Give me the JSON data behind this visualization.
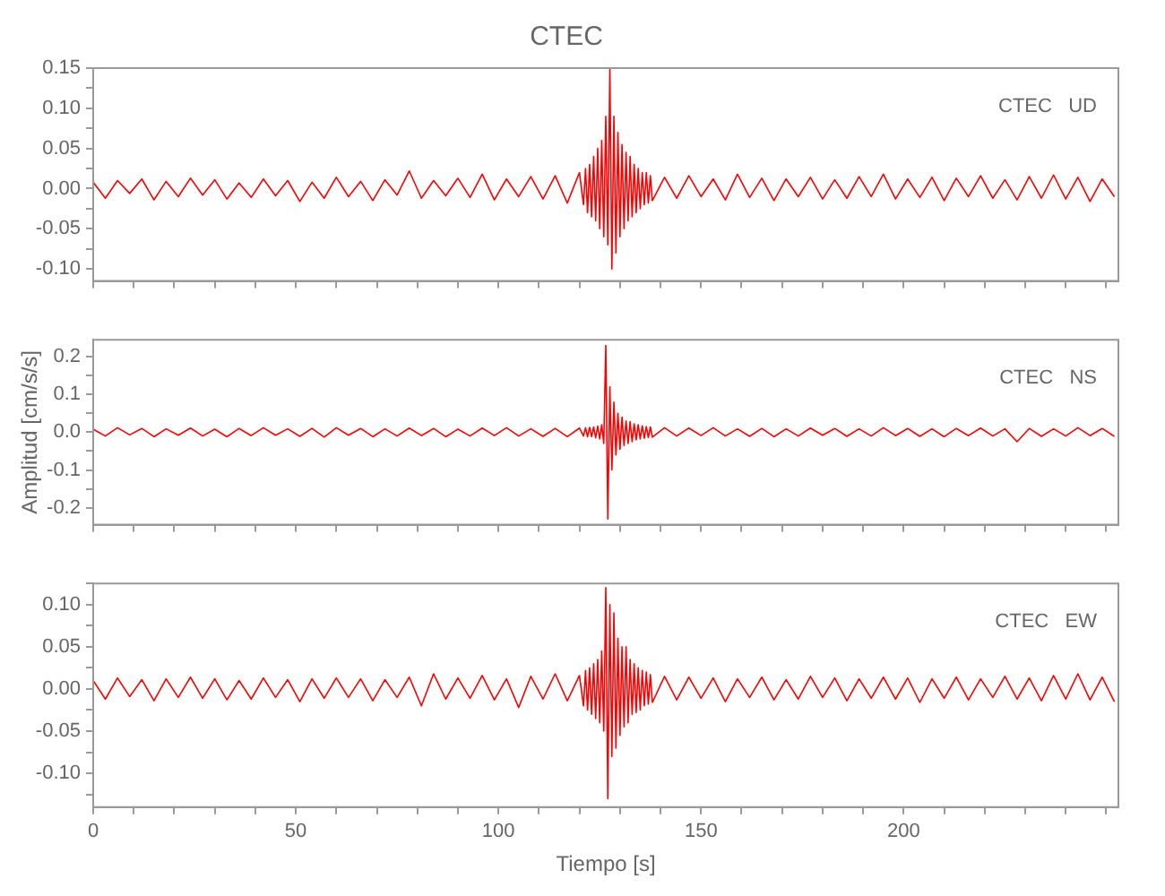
{
  "chart_data": [
    {
      "type": "line",
      "title": "CTEC",
      "annotations": [
        "CTEC   UD"
      ],
      "tick_labels": "y",
      "grid": false,
      "marker": "none",
      "x": [
        0,
        3,
        6,
        9,
        12,
        15,
        18,
        21,
        24,
        27,
        30,
        33,
        36,
        39,
        42,
        45,
        48,
        51,
        54,
        57,
        60,
        63,
        66,
        69,
        72,
        75,
        78,
        81,
        84,
        87,
        90,
        93,
        96,
        99,
        102,
        105,
        108,
        111,
        114,
        117,
        120,
        121,
        121.5,
        122,
        122.5,
        123,
        123.5,
        124,
        124.5,
        125,
        125.5,
        126,
        126.5,
        127,
        127.5,
        128,
        128.5,
        129,
        129.5,
        130,
        130.5,
        131,
        131.5,
        132,
        132.5,
        133,
        133.5,
        134,
        134.5,
        135,
        135.5,
        136,
        136.5,
        137,
        137.5,
        138,
        141,
        144,
        147,
        150,
        153,
        156,
        159,
        162,
        165,
        168,
        171,
        174,
        177,
        180,
        183,
        186,
        189,
        192,
        195,
        198,
        201,
        204,
        207,
        210,
        213,
        216,
        219,
        222,
        225,
        228,
        231,
        234,
        237,
        240,
        243,
        246,
        249,
        252
      ],
      "series": [
        {
          "color": "#ff0000",
          "values": [
            0.008,
            -0.012,
            0.01,
            -0.006,
            0.012,
            -0.014,
            0.009,
            -0.01,
            0.013,
            -0.008,
            0.011,
            -0.013,
            0.007,
            -0.011,
            0.012,
            -0.009,
            0.01,
            -0.016,
            0.008,
            -0.012,
            0.014,
            -0.01,
            0.009,
            -0.015,
            0.011,
            -0.008,
            0.022,
            -0.012,
            0.01,
            -0.009,
            0.013,
            -0.011,
            0.018,
            -0.014,
            0.012,
            -0.01,
            0.015,
            -0.013,
            0.016,
            -0.018,
            0.02,
            -0.02,
            0.025,
            -0.03,
            0.03,
            -0.035,
            0.04,
            -0.04,
            0.05,
            -0.05,
            0.06,
            -0.06,
            0.09,
            -0.07,
            0.15,
            -0.1,
            0.09,
            -0.08,
            0.07,
            -0.06,
            0.055,
            -0.05,
            0.045,
            -0.04,
            0.04,
            -0.035,
            0.03,
            -0.03,
            0.025,
            -0.025,
            0.02,
            -0.02,
            0.02,
            -0.018,
            0.016,
            -0.015,
            0.014,
            -0.012,
            0.016,
            -0.01,
            0.012,
            -0.014,
            0.018,
            -0.011,
            0.013,
            -0.015,
            0.012,
            -0.01,
            0.014,
            -0.013,
            0.011,
            -0.012,
            0.015,
            -0.01,
            0.018,
            -0.013,
            0.012,
            -0.011,
            0.014,
            -0.015,
            0.013,
            -0.01,
            0.016,
            -0.012,
            0.011,
            -0.014,
            0.015,
            -0.012,
            0.017,
            -0.013,
            0.014,
            -0.016,
            0.012,
            -0.01
          ]
        }
      ],
      "xlim": [
        0,
        253
      ],
      "xticks": [
        0,
        {
          "value": 10,
          "label": null
        },
        {
          "value": 20,
          "label": null
        },
        {
          "value": 30,
          "label": null
        },
        {
          "value": 40,
          "label": null
        },
        50,
        {
          "value": 60,
          "label": null
        },
        {
          "value": 70,
          "label": null
        },
        {
          "value": 80,
          "label": null
        },
        {
          "value": 90,
          "label": null
        },
        100,
        {
          "value": 110,
          "label": null
        },
        {
          "value": 120,
          "label": null
        },
        {
          "value": 130,
          "label": null
        },
        {
          "value": 140,
          "label": null
        },
        150,
        {
          "value": 160,
          "label": null
        },
        {
          "value": 170,
          "label": null
        },
        {
          "value": 180,
          "label": null
        },
        {
          "value": 190,
          "label": null
        },
        200,
        {
          "value": 210,
          "label": null
        },
        {
          "value": 220,
          "label": null
        },
        {
          "value": 230,
          "label": null
        },
        {
          "value": 240,
          "label": null
        },
        {
          "value": 250,
          "label": null
        }
      ],
      "ylim": [
        -0.115,
        0.15
      ],
      "yticks": [
        {
          "value": -0.1,
          "label": "-0.10"
        },
        {
          "value": -0.075,
          "label": null
        },
        {
          "value": -0.05,
          "label": "-0.05"
        },
        {
          "value": -0.025,
          "label": null
        },
        {
          "value": 0,
          "label": "0.00"
        },
        {
          "value": 0.025,
          "label": null
        },
        {
          "value": 0.05,
          "label": "0.05"
        },
        {
          "value": 0.075,
          "label": null
        },
        {
          "value": 0.1,
          "label": "0.10"
        },
        {
          "value": 0.125,
          "label": null
        },
        {
          "value": 0.15,
          "label": "0.15"
        }
      ]
    },
    {
      "type": "line",
      "ylabel": "Amplitud [cm/s/s]",
      "annotations": [
        "CTEC   NS"
      ],
      "tick_labels": "y",
      "grid": false,
      "marker": "none",
      "x": [
        0,
        3,
        6,
        9,
        12,
        15,
        18,
        21,
        24,
        27,
        30,
        33,
        36,
        39,
        42,
        45,
        48,
        51,
        54,
        57,
        60,
        63,
        66,
        69,
        72,
        75,
        78,
        81,
        84,
        87,
        90,
        93,
        96,
        99,
        102,
        105,
        108,
        111,
        114,
        117,
        120,
        121,
        121.5,
        122,
        122.5,
        123,
        123.5,
        124,
        124.5,
        125,
        125.5,
        126,
        126.5,
        127,
        127.5,
        128,
        128.5,
        129,
        129.5,
        130,
        130.5,
        131,
        131.5,
        132,
        132.5,
        133,
        133.5,
        134,
        134.5,
        135,
        135.5,
        136,
        136.5,
        137,
        137.5,
        138,
        141,
        144,
        147,
        150,
        153,
        156,
        159,
        162,
        165,
        168,
        171,
        174,
        177,
        180,
        183,
        186,
        189,
        192,
        195,
        198,
        201,
        204,
        207,
        210,
        213,
        216,
        219,
        222,
        225,
        228,
        231,
        234,
        237,
        240,
        243,
        246,
        249,
        252
      ],
      "series": [
        {
          "color": "#ff0000",
          "values": [
            0.008,
            -0.01,
            0.012,
            -0.007,
            0.01,
            -0.012,
            0.009,
            -0.008,
            0.011,
            -0.01,
            0.008,
            -0.012,
            0.01,
            -0.009,
            0.012,
            -0.008,
            0.009,
            -0.011,
            0.01,
            -0.013,
            0.012,
            -0.008,
            0.01,
            -0.012,
            0.009,
            -0.01,
            0.011,
            -0.009,
            0.01,
            -0.012,
            0.008,
            -0.01,
            0.011,
            -0.009,
            0.012,
            -0.01,
            0.009,
            -0.011,
            0.01,
            -0.012,
            0.011,
            -0.01,
            0.012,
            -0.012,
            0.013,
            -0.012,
            0.014,
            -0.015,
            0.016,
            -0.018,
            0.02,
            -0.03,
            0.23,
            -0.23,
            0.12,
            -0.1,
            0.08,
            -0.06,
            0.05,
            -0.045,
            0.04,
            -0.035,
            0.03,
            -0.03,
            0.028,
            -0.025,
            0.022,
            -0.02,
            0.02,
            -0.018,
            0.017,
            -0.016,
            0.015,
            -0.014,
            0.014,
            -0.013,
            0.012,
            -0.01,
            0.011,
            -0.009,
            0.012,
            -0.01,
            0.009,
            -0.011,
            0.01,
            -0.012,
            0.009,
            -0.01,
            0.011,
            -0.008,
            0.01,
            -0.011,
            0.009,
            -0.01,
            0.012,
            -0.009,
            0.01,
            -0.011,
            0.009,
            -0.012,
            0.01,
            -0.009,
            0.011,
            -0.01,
            0.009,
            -0.025,
            0.01,
            -0.011,
            0.009,
            -0.01,
            0.012,
            -0.009,
            0.01,
            -0.011
          ]
        }
      ],
      "xlim": [
        0,
        253
      ],
      "xticks": [
        0,
        {
          "value": 10,
          "label": null
        },
        {
          "value": 20,
          "label": null
        },
        {
          "value": 30,
          "label": null
        },
        {
          "value": 40,
          "label": null
        },
        50,
        {
          "value": 60,
          "label": null
        },
        {
          "value": 70,
          "label": null
        },
        {
          "value": 80,
          "label": null
        },
        {
          "value": 90,
          "label": null
        },
        100,
        {
          "value": 110,
          "label": null
        },
        {
          "value": 120,
          "label": null
        },
        {
          "value": 130,
          "label": null
        },
        {
          "value": 140,
          "label": null
        },
        150,
        {
          "value": 160,
          "label": null
        },
        {
          "value": 170,
          "label": null
        },
        {
          "value": 180,
          "label": null
        },
        {
          "value": 190,
          "label": null
        },
        200,
        {
          "value": 210,
          "label": null
        },
        {
          "value": 220,
          "label": null
        },
        {
          "value": 230,
          "label": null
        },
        {
          "value": 240,
          "label": null
        },
        {
          "value": 250,
          "label": null
        }
      ],
      "ylim": [
        -0.245,
        0.245
      ],
      "yticks": [
        {
          "value": -0.2,
          "label": "-0.2"
        },
        {
          "value": -0.15,
          "label": null
        },
        {
          "value": -0.1,
          "label": "-0.1"
        },
        {
          "value": -0.05,
          "label": null
        },
        {
          "value": 0,
          "label": "0.0"
        },
        {
          "value": 0.05,
          "label": null
        },
        {
          "value": 0.1,
          "label": "0.1"
        },
        {
          "value": 0.15,
          "label": null
        },
        {
          "value": 0.2,
          "label": "0.2"
        }
      ]
    },
    {
      "type": "line",
      "xlabel": "Tiempo [s]",
      "annotations": [
        "CTEC   EW"
      ],
      "grid": false,
      "marker": "none",
      "x": [
        0,
        3,
        6,
        9,
        12,
        15,
        18,
        21,
        24,
        27,
        30,
        33,
        36,
        39,
        42,
        45,
        48,
        51,
        54,
        57,
        60,
        63,
        66,
        69,
        72,
        75,
        78,
        81,
        84,
        87,
        90,
        93,
        96,
        99,
        102,
        105,
        108,
        111,
        114,
        117,
        120,
        121,
        121.5,
        122,
        122.5,
        123,
        123.5,
        124,
        124.5,
        125,
        125.5,
        126,
        126.5,
        127,
        127.5,
        128,
        128.5,
        129,
        129.5,
        130,
        130.5,
        131,
        131.5,
        132,
        132.5,
        133,
        133.5,
        134,
        134.5,
        135,
        135.5,
        136,
        136.5,
        137,
        137.5,
        138,
        141,
        144,
        147,
        150,
        153,
        156,
        159,
        162,
        165,
        168,
        171,
        174,
        177,
        180,
        183,
        186,
        189,
        192,
        195,
        198,
        201,
        204,
        207,
        210,
        213,
        216,
        219,
        222,
        225,
        228,
        231,
        234,
        237,
        240,
        243,
        246,
        249,
        252
      ],
      "series": [
        {
          "color": "#ff0000",
          "values": [
            0.01,
            -0.012,
            0.013,
            -0.009,
            0.011,
            -0.014,
            0.012,
            -0.01,
            0.014,
            -0.011,
            0.012,
            -0.013,
            0.01,
            -0.012,
            0.013,
            -0.01,
            0.011,
            -0.015,
            0.012,
            -0.011,
            0.013,
            -0.01,
            0.012,
            -0.014,
            0.011,
            -0.01,
            0.014,
            -0.02,
            0.018,
            -0.012,
            0.013,
            -0.011,
            0.016,
            -0.013,
            0.012,
            -0.022,
            0.015,
            -0.012,
            0.018,
            -0.014,
            0.016,
            -0.02,
            0.022,
            -0.025,
            0.025,
            -0.03,
            0.03,
            -0.035,
            0.035,
            -0.04,
            0.045,
            -0.05,
            0.12,
            -0.13,
            0.1,
            -0.08,
            0.09,
            -0.07,
            0.06,
            -0.055,
            0.05,
            -0.045,
            0.05,
            -0.04,
            0.035,
            -0.03,
            0.03,
            -0.028,
            0.025,
            -0.025,
            0.022,
            -0.02,
            0.02,
            -0.018,
            0.017,
            -0.016,
            0.015,
            -0.013,
            0.014,
            -0.011,
            0.013,
            -0.015,
            0.012,
            -0.01,
            0.014,
            -0.013,
            0.011,
            -0.012,
            0.015,
            -0.01,
            0.013,
            -0.014,
            0.012,
            -0.011,
            0.014,
            -0.012,
            0.013,
            -0.016,
            0.012,
            -0.011,
            0.014,
            -0.013,
            0.012,
            -0.01,
            0.015,
            -0.012,
            0.013,
            -0.014,
            0.016,
            -0.012,
            0.018,
            -0.013,
            0.014,
            -0.015
          ]
        }
      ],
      "xlim": [
        0,
        253
      ],
      "xticks": [
        0,
        {
          "value": 10,
          "label": null
        },
        {
          "value": 20,
          "label": null
        },
        {
          "value": 30,
          "label": null
        },
        {
          "value": 40,
          "label": null
        },
        50,
        {
          "value": 60,
          "label": null
        },
        {
          "value": 70,
          "label": null
        },
        {
          "value": 80,
          "label": null
        },
        {
          "value": 90,
          "label": null
        },
        100,
        {
          "value": 110,
          "label": null
        },
        {
          "value": 120,
          "label": null
        },
        {
          "value": 130,
          "label": null
        },
        {
          "value": 140,
          "label": null
        },
        150,
        {
          "value": 160,
          "label": null
        },
        {
          "value": 170,
          "label": null
        },
        {
          "value": 180,
          "label": null
        },
        {
          "value": 190,
          "label": null
        },
        200,
        {
          "value": 210,
          "label": null
        },
        {
          "value": 220,
          "label": null
        },
        {
          "value": 230,
          "label": null
        },
        {
          "value": 240,
          "label": null
        },
        {
          "value": 250,
          "label": null
        }
      ],
      "ylim": [
        -0.14,
        0.125
      ],
      "yticks": [
        {
          "value": -0.125,
          "label": null
        },
        {
          "value": -0.1,
          "label": "-0.10"
        },
        {
          "value": -0.075,
          "label": null
        },
        {
          "value": -0.05,
          "label": "-0.05"
        },
        {
          "value": -0.025,
          "label": null
        },
        {
          "value": 0,
          "label": "0.00"
        },
        {
          "value": 0.025,
          "label": null
        },
        {
          "value": 0.05,
          "label": "0.05"
        },
        {
          "value": 0.075,
          "label": null
        },
        {
          "value": 0.1,
          "label": "0.10"
        },
        {
          "value": 0.125,
          "label": null
        }
      ]
    }
  ]
}
